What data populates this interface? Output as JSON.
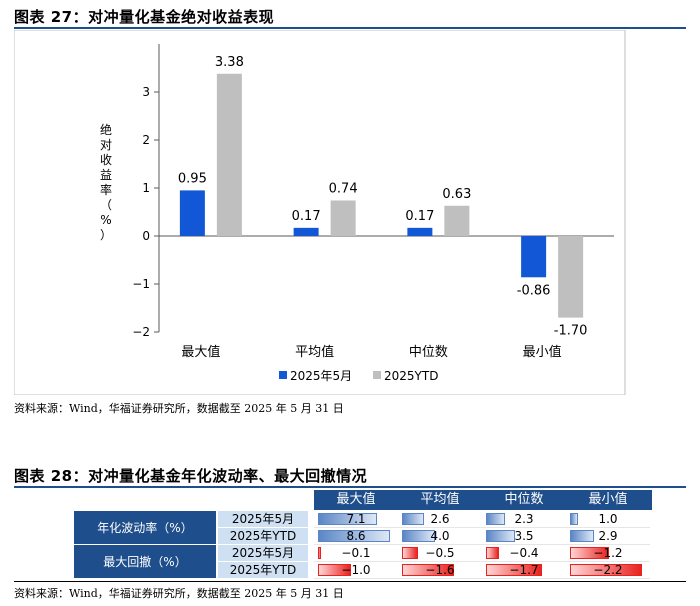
{
  "figure27": {
    "title": "图表 27：对冲量化基金绝对收益表现",
    "source": "资料来源：Wind，华福证券研究所，数据截至 2025 年 5 月 31 日"
  },
  "figure28": {
    "title": "图表 28：对冲量化基金年化波动率、最大回撤情况",
    "source": "资料来源：Wind，华福证券研究所，数据截至 2025 年 5 月 31 日"
  },
  "chart_data": [
    {
      "type": "bar",
      "ylabel": "绝对收益率（%）",
      "categories": [
        "最大值",
        "平均值",
        "中位数",
        "最小值"
      ],
      "series": [
        {
          "name": "2025年5月",
          "values": [
            0.95,
            0.17,
            0.17,
            -0.86
          ],
          "labels": [
            "0.95",
            "0.17",
            "0.17",
            "-0.86"
          ],
          "color": "#1257d6"
        },
        {
          "name": "2025YTD",
          "values": [
            3.38,
            0.74,
            0.63,
            -1.7
          ],
          "labels": [
            "3.38",
            "0.74",
            "0.63",
            "-1.70"
          ],
          "color": "#bfbfbf"
        }
      ],
      "ylim": [
        -2,
        4
      ],
      "yticks": [
        -2,
        -1,
        0,
        1,
        2,
        3
      ],
      "ytick_labels": [
        "−2",
        "−1",
        "0",
        "1",
        "2",
        "3"
      ],
      "grid": false,
      "legend": "bottom"
    },
    {
      "type": "table",
      "columns": [
        "最大值",
        "平均值",
        "中位数",
        "最小值"
      ],
      "rows": [
        {
          "metric": "年化波动率（%）",
          "period": "2025年5月",
          "values": [
            7.1,
            2.6,
            2.3,
            1.0
          ],
          "labels": [
            "7.1",
            "2.6",
            "2.3",
            "1.0"
          ],
          "bar_color": "#5b86c5"
        },
        {
          "metric": "年化波动率（%）",
          "period": "2025年YTD",
          "values": [
            8.6,
            4.0,
            3.5,
            2.9
          ],
          "labels": [
            "8.6",
            "4.0",
            "3.5",
            "2.9"
          ],
          "bar_color": "#5b86c5"
        },
        {
          "metric": "最大回撤（%）",
          "period": "2025年5月",
          "values": [
            -0.1,
            -0.5,
            -0.4,
            -1.2
          ],
          "labels": [
            "−0.1",
            "−0.5",
            "−0.4",
            "−1.2"
          ],
          "bar_color": "#e8231f"
        },
        {
          "metric": "最大回撤（%）",
          "period": "2025年YTD",
          "values": [
            -1.0,
            -1.6,
            -1.7,
            -2.2
          ],
          "labels": [
            "−1.0",
            "−1.6",
            "−1.7",
            "−2.2"
          ],
          "bar_color": "#e8231f"
        }
      ],
      "metric_groups": [
        "年化波动率（%）",
        "最大回撤（%）"
      ]
    }
  ]
}
